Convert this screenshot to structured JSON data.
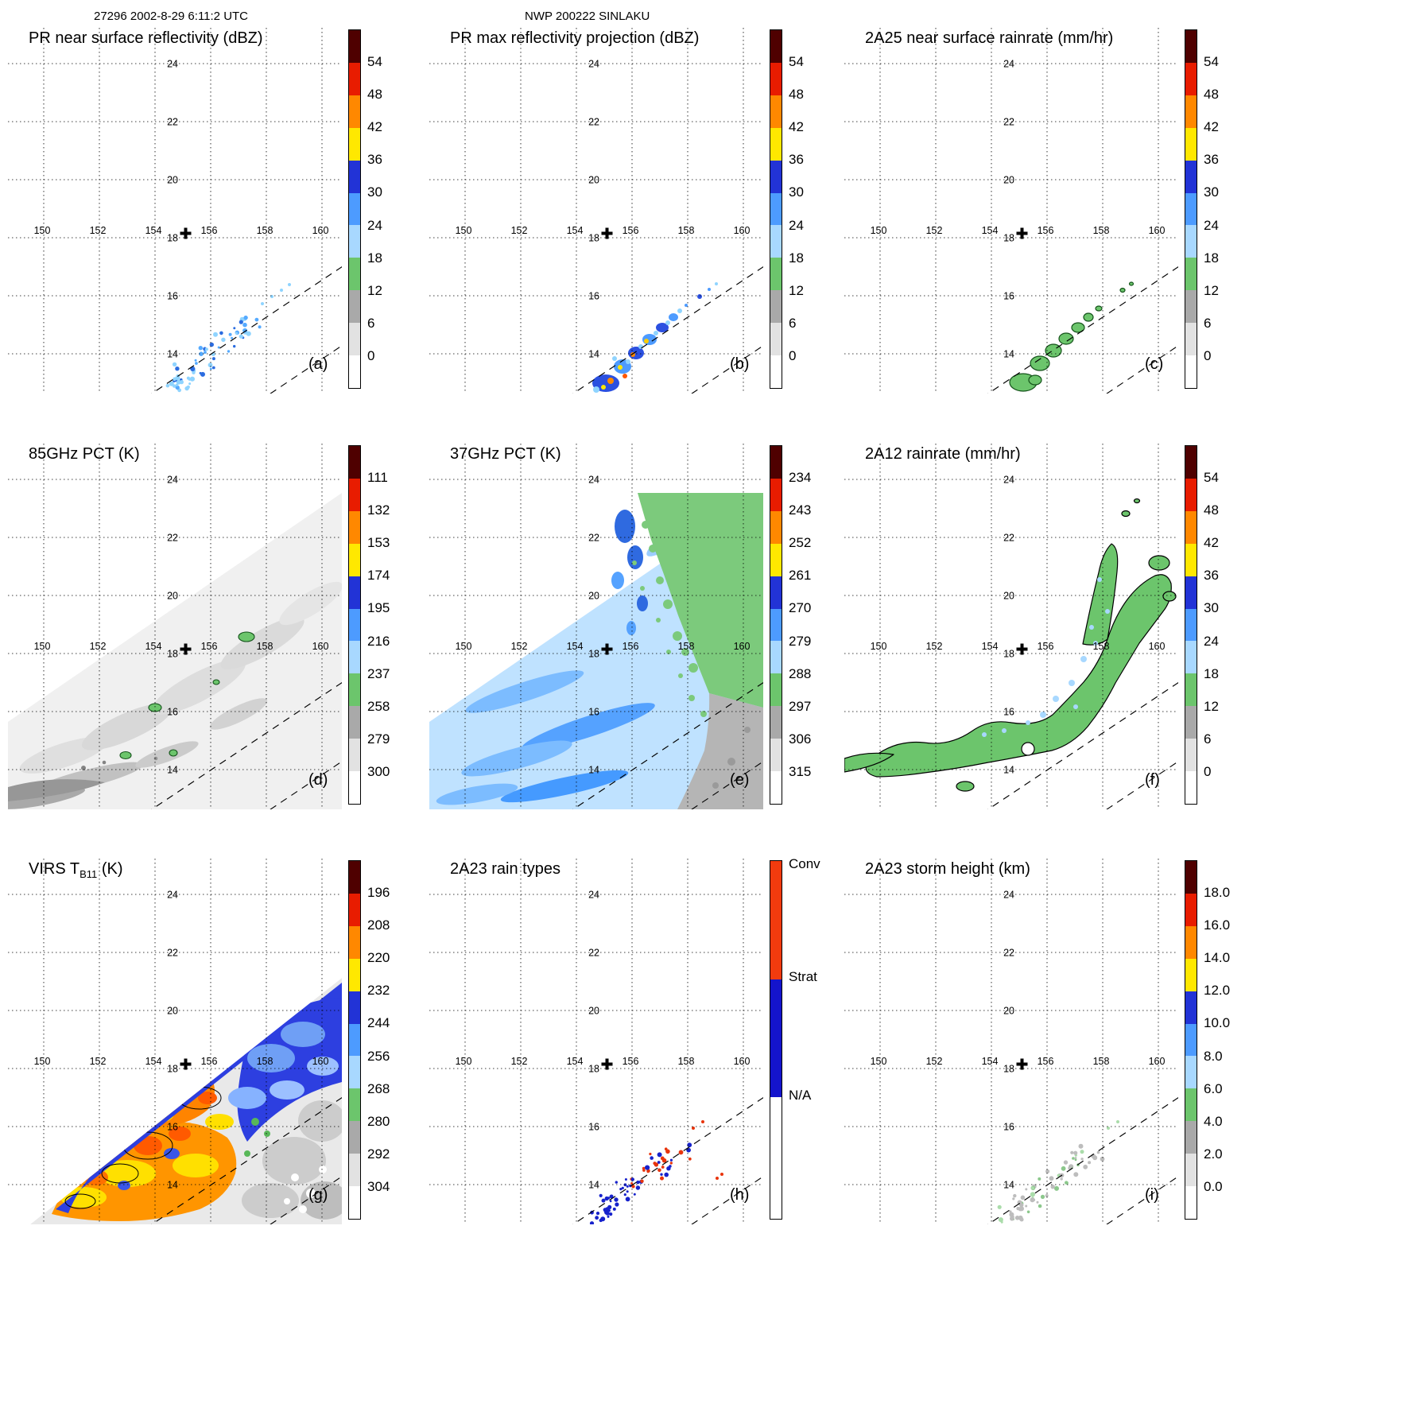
{
  "header": {
    "orbit_datetime": "27296 2002-8-29 6:11:2 UTC",
    "storm_id": "NWP 200222 SINLAKU"
  },
  "geo": {
    "lon_labels": [
      "150",
      "152",
      "154",
      "156",
      "158",
      "160"
    ],
    "lat_labels": [
      "24",
      "22",
      "20",
      "18",
      "16",
      "14"
    ],
    "center_cross": {
      "lon": 155.1,
      "lat": 18.15
    },
    "swath_lines": [
      [
        160,
        474,
        448,
        282
      ],
      [
        290,
        487,
        448,
        381
      ]
    ]
  },
  "colorbar_colors_top_to_bottom": [
    "#4f0000",
    "#e81c00",
    "#ff8800",
    "#ffe800",
    "#2233d6",
    "#4d9bff",
    "#a8d8ff",
    "#6cc56c",
    "#a9a9a9",
    "#e2e2e2",
    "#ffffff"
  ],
  "panels": [
    {
      "letter": "(a)",
      "title": "PR near surface reflectivity (dBZ)",
      "colorbar": {
        "type": "scale",
        "ticks": [
          "54",
          "48",
          "42",
          "36",
          "30",
          "24",
          "18",
          "12",
          "6",
          "0"
        ]
      }
    },
    {
      "letter": "(b)",
      "title": "PR max reflectivity projection (dBZ)",
      "colorbar": {
        "type": "scale",
        "ticks": [
          "54",
          "48",
          "42",
          "36",
          "30",
          "24",
          "18",
          "12",
          "6",
          "0"
        ]
      }
    },
    {
      "letter": "(c)",
      "title": "2A25 near surface rainrate (mm/hr)",
      "colorbar": {
        "type": "scale",
        "ticks": [
          "54",
          "48",
          "42",
          "36",
          "30",
          "24",
          "18",
          "12",
          "6",
          "0"
        ]
      }
    },
    {
      "letter": "(d)",
      "title": "85GHz PCT (K)",
      "colorbar": {
        "type": "scale",
        "ticks": [
          "111",
          "132",
          "153",
          "174",
          "195",
          "216",
          "237",
          "258",
          "279",
          "300"
        ]
      }
    },
    {
      "letter": "(e)",
      "title": "37GHz PCT (K)",
      "colorbar": {
        "type": "scale",
        "ticks": [
          "234",
          "243",
          "252",
          "261",
          "270",
          "279",
          "288",
          "297",
          "306",
          "315"
        ]
      }
    },
    {
      "letter": "(f)",
      "title": "2A12 rainrate (mm/hr)",
      "colorbar": {
        "type": "scale",
        "ticks": [
          "54",
          "48",
          "42",
          "36",
          "30",
          "24",
          "18",
          "12",
          "6",
          "0"
        ]
      }
    },
    {
      "letter": "(g)",
      "title_prefix": "VIRS T",
      "title_sub": "B11",
      "title_suffix": " (K)",
      "colorbar": {
        "type": "scale",
        "ticks": [
          "196",
          "208",
          "220",
          "232",
          "244",
          "256",
          "268",
          "280",
          "292",
          "304"
        ]
      }
    },
    {
      "letter": "(h)",
      "title": "2A23 rain types",
      "colorbar": {
        "type": "categorical",
        "labels": [
          "Conv",
          "Strat",
          "N/A"
        ],
        "colors": [
          "#f23b0e",
          "#1414cc",
          "#ffffff"
        ]
      }
    },
    {
      "letter": "(i)",
      "title": "2A23 storm height (km)",
      "colorbar": {
        "type": "scale",
        "ticks": [
          "18.0",
          "16.0",
          "14.0",
          "12.0",
          "10.0",
          "8.0",
          "6.0",
          "4.0",
          "2.0",
          "0.0"
        ]
      }
    }
  ],
  "chart_data": {
    "type": "heatmap",
    "layout": "3x3 satellite overpass map panels with shared lat/lon grid and vertical colorbars",
    "axes": {
      "lon_ticks": [
        150,
        152,
        154,
        156,
        158,
        160
      ],
      "lat_ticks": [
        14,
        16,
        18,
        20,
        22,
        24
      ],
      "storm_center_lonlat": [
        155.1,
        18.15
      ],
      "grid": "dotted",
      "swath_edges": "two parallel dashed lines SW-NE"
    },
    "panels": [
      {
        "id": "a",
        "title": "PR near surface reflectivity (dBZ)",
        "colorbar_ticks": [
          54,
          48,
          42,
          36,
          30,
          24,
          18,
          12,
          6,
          0
        ],
        "content": "scattered 18-35 dBZ echoes near 155-157E, 13-15N"
      },
      {
        "id": "b",
        "title": "PR max reflectivity projection (dBZ)",
        "colorbar_ticks": [
          54,
          48,
          42,
          36,
          30,
          24,
          18,
          12,
          6,
          0
        ],
        "content": "same echo cluster with embedded 36-48 dBZ cores"
      },
      {
        "id": "c",
        "title": "2A25 near surface rainrate (mm/hr)",
        "colorbar_ticks": [
          54,
          48,
          42,
          36,
          30,
          24,
          18,
          12,
          6,
          0
        ],
        "content": "light rain patches (green) near 155-157E, 13-15N"
      },
      {
        "id": "d",
        "title": "85GHz PCT (K)",
        "colorbar_ticks": [
          111,
          132,
          153,
          174,
          195,
          216,
          237,
          258,
          279,
          300
        ],
        "content": "warm grayscale field over TMI swath with small depressed-PCT spots"
      },
      {
        "id": "e",
        "title": "37GHz PCT (K)",
        "colorbar_ticks": [
          234,
          243,
          252,
          261,
          270,
          279,
          288,
          297,
          306,
          315
        ],
        "content": "270-285 K (blue) over ocean west, 285-295 K (green) to northeast"
      },
      {
        "id": "f",
        "title": "2A12 rainrate (mm/hr)",
        "colorbar_ticks": [
          54,
          48,
          42,
          36,
          30,
          24,
          18,
          12,
          6,
          0
        ],
        "content": "broad light-rain region (outlined green) across 150-160E, 14-18N"
      },
      {
        "id": "g",
        "title": "VIRS TB11 (K)",
        "colorbar_ticks": [
          196,
          208,
          220,
          232,
          244,
          256,
          268,
          280,
          292,
          304
        ],
        "content": "cold cloud tops 200-230 K (orange/yellow) with 232-250 K band (blue)"
      },
      {
        "id": "h",
        "title": "2A23 rain types",
        "categories": [
          "Conv",
          "Strat",
          "N/A"
        ],
        "content": "stratiform (blue) pixels with convective (red) pixels on NE flank"
      },
      {
        "id": "i",
        "title": "2A23 storm height (km)",
        "colorbar_ticks": [
          18,
          16,
          14,
          12,
          10,
          8,
          6,
          4,
          2,
          0
        ],
        "content": "storm heights 2-6 km in echo cluster near 155-157E, 13-15N"
      }
    ]
  }
}
